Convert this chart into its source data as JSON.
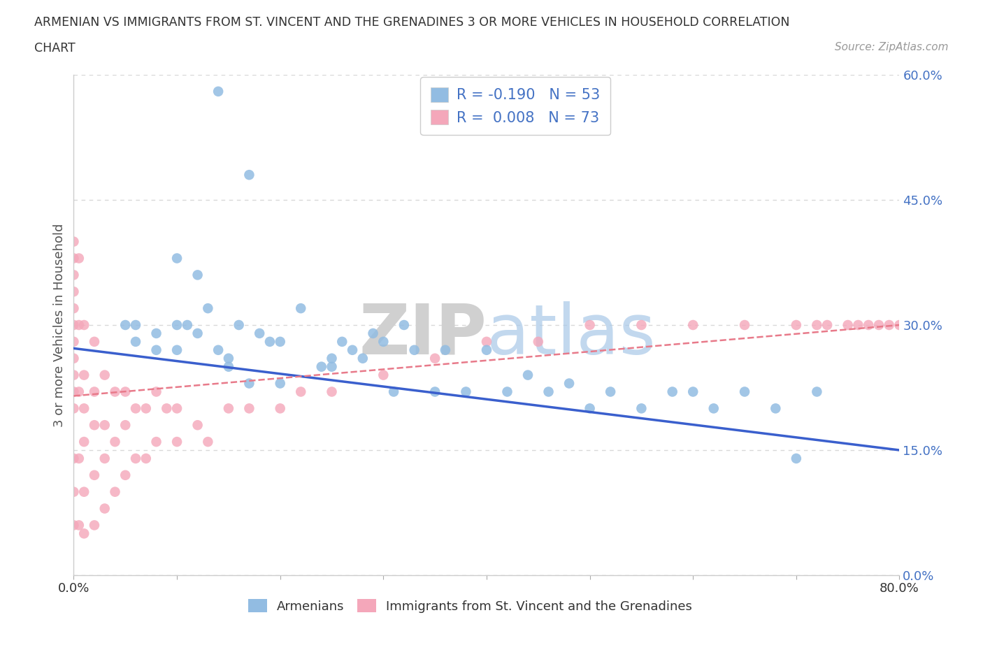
{
  "title_line1": "ARMENIAN VS IMMIGRANTS FROM ST. VINCENT AND THE GRENADINES 3 OR MORE VEHICLES IN HOUSEHOLD CORRELATION",
  "title_line2": "CHART",
  "source_text": "Source: ZipAtlas.com",
  "ylabel": "3 or more Vehicles in Household",
  "legend_label1": "Armenians",
  "legend_label2": "Immigrants from St. Vincent and the Grenadines",
  "R1": -0.19,
  "N1": 53,
  "R2": 0.008,
  "N2": 73,
  "color_armenian": "#92bce2",
  "color_svg": "#f4a7ba",
  "line_color_armenian": "#3a5fcd",
  "line_color_svg": "#e87a8a",
  "xmin": 0.0,
  "xmax": 0.8,
  "ymin": 0.0,
  "ymax": 0.6,
  "watermark_zip": "ZIP",
  "watermark_atlas": "atlas",
  "background_color": "#ffffff",
  "grid_color": "#d8d8d8",
  "arm_x": [
    0.14,
    0.17,
    0.05,
    0.06,
    0.08,
    0.1,
    0.1,
    0.11,
    0.12,
    0.13,
    0.14,
    0.15,
    0.16,
    0.17,
    0.18,
    0.19,
    0.2,
    0.22,
    0.24,
    0.25,
    0.26,
    0.27,
    0.28,
    0.29,
    0.3,
    0.31,
    0.32,
    0.33,
    0.35,
    0.36,
    0.38,
    0.4,
    0.42,
    0.44,
    0.46,
    0.48,
    0.5,
    0.52,
    0.55,
    0.58,
    0.6,
    0.62,
    0.65,
    0.68,
    0.7,
    0.72,
    0.06,
    0.08,
    0.1,
    0.12,
    0.15,
    0.2,
    0.25
  ],
  "arm_y": [
    0.58,
    0.48,
    0.3,
    0.3,
    0.27,
    0.38,
    0.27,
    0.3,
    0.36,
    0.32,
    0.27,
    0.26,
    0.3,
    0.23,
    0.29,
    0.28,
    0.28,
    0.32,
    0.25,
    0.25,
    0.28,
    0.27,
    0.26,
    0.29,
    0.28,
    0.22,
    0.3,
    0.27,
    0.22,
    0.27,
    0.22,
    0.27,
    0.22,
    0.24,
    0.22,
    0.23,
    0.2,
    0.22,
    0.2,
    0.22,
    0.22,
    0.2,
    0.22,
    0.2,
    0.14,
    0.22,
    0.28,
    0.29,
    0.3,
    0.29,
    0.25,
    0.23,
    0.26
  ],
  "svg_x": [
    0.0,
    0.0,
    0.0,
    0.0,
    0.0,
    0.0,
    0.0,
    0.0,
    0.0,
    0.0,
    0.0,
    0.0,
    0.0,
    0.0,
    0.005,
    0.005,
    0.005,
    0.005,
    0.005,
    0.01,
    0.01,
    0.01,
    0.01,
    0.01,
    0.01,
    0.02,
    0.02,
    0.02,
    0.02,
    0.02,
    0.03,
    0.03,
    0.03,
    0.03,
    0.04,
    0.04,
    0.04,
    0.05,
    0.05,
    0.05,
    0.06,
    0.06,
    0.07,
    0.07,
    0.08,
    0.08,
    0.09,
    0.1,
    0.1,
    0.12,
    0.13,
    0.15,
    0.17,
    0.2,
    0.22,
    0.25,
    0.3,
    0.35,
    0.4,
    0.45,
    0.5,
    0.55,
    0.6,
    0.65,
    0.7,
    0.72,
    0.73,
    0.75,
    0.76,
    0.77,
    0.78,
    0.79,
    0.8
  ],
  "svg_y": [
    0.4,
    0.38,
    0.36,
    0.34,
    0.32,
    0.3,
    0.28,
    0.26,
    0.24,
    0.22,
    0.2,
    0.14,
    0.1,
    0.06,
    0.38,
    0.3,
    0.22,
    0.14,
    0.06,
    0.3,
    0.24,
    0.2,
    0.16,
    0.1,
    0.05,
    0.28,
    0.22,
    0.18,
    0.12,
    0.06,
    0.24,
    0.18,
    0.14,
    0.08,
    0.22,
    0.16,
    0.1,
    0.22,
    0.18,
    0.12,
    0.2,
    0.14,
    0.2,
    0.14,
    0.22,
    0.16,
    0.2,
    0.2,
    0.16,
    0.18,
    0.16,
    0.2,
    0.2,
    0.2,
    0.22,
    0.22,
    0.24,
    0.26,
    0.28,
    0.28,
    0.3,
    0.3,
    0.3,
    0.3,
    0.3,
    0.3,
    0.3,
    0.3,
    0.3,
    0.3,
    0.3,
    0.3,
    0.3
  ]
}
